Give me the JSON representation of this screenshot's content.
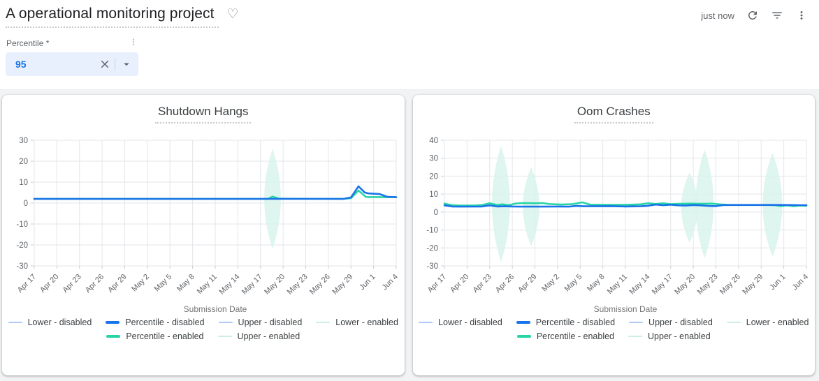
{
  "header": {
    "title": "A operational monitoring project",
    "heart_icon": "heart-outline",
    "updated": "just now",
    "icons": [
      "refresh-icon",
      "filter-icon",
      "kebab-menu-icon"
    ]
  },
  "filter": {
    "label": "Percentile *",
    "value": "95",
    "icons": [
      "kebab-menu-icon",
      "clear-icon",
      "dropdown-caret-icon"
    ]
  },
  "colors": {
    "accent_blue": "#1a73e8",
    "light_blue": "#aecbfa",
    "accent_green": "#26d4a5",
    "light_green": "#cdeee3",
    "band_fill": "#d9f3ec",
    "grid": "#e3e6e9",
    "axis_text": "#5f6368"
  },
  "legend": {
    "rows": [
      [
        {
          "label": "Lower  - disabled",
          "color": "#aecbfa",
          "thick": false
        },
        {
          "label": "Percentile  - disabled",
          "color": "#1a73e8",
          "thick": true
        },
        {
          "label": "Upper  - disabled",
          "color": "#aecbfa",
          "thick": false
        },
        {
          "label": "Lower  - enabled",
          "color": "#cdeee3",
          "thick": false
        }
      ],
      [
        {
          "label": "Percentile  - enabled",
          "color": "#26d4a5",
          "thick": true
        },
        {
          "label": "Upper  - enabled",
          "color": "#cdeee3",
          "thick": false
        }
      ]
    ]
  },
  "chart_data": [
    {
      "type": "line",
      "title": "Shutdown Hangs",
      "xlabel": "Submission Date",
      "ylabel": "",
      "ylim": [
        -30,
        30
      ],
      "ytick_step": 10,
      "categories": [
        "Apr 17",
        "Apr 20",
        "Apr 23",
        "Apr 26",
        "Apr 29",
        "May 2",
        "May 5",
        "May 8",
        "May 11",
        "May 14",
        "May 17",
        "May 20",
        "May 23",
        "May 26",
        "May 29",
        "Jun 1",
        "Jun 4"
      ],
      "x_days_per_tick": 3,
      "x_max": 48,
      "grid": true,
      "legend_position": "bottom",
      "band_color": "#d9f3ec",
      "violins": [
        {
          "x": 31.6,
          "upper": 26,
          "lower": -22,
          "hw": 1.1
        }
      ],
      "series": [
        {
          "name": "Lower - disabled",
          "color": "#aecbfa",
          "thick": false,
          "same_as": "Percentile - disabled"
        },
        {
          "name": "Upper - disabled",
          "color": "#aecbfa",
          "thick": false,
          "same_as": "Percentile - disabled"
        },
        {
          "name": "Lower - enabled",
          "color": "#cdeee3",
          "thick": false,
          "same_as": "Percentile - enabled"
        },
        {
          "name": "Upper - enabled",
          "color": "#cdeee3",
          "thick": false,
          "same_as": "Percentile - enabled"
        },
        {
          "name": "Percentile - enabled",
          "color": "#26d4a5",
          "thick": true,
          "points": [
            [
              0,
              2
            ],
            [
              31,
              2
            ],
            [
              31.6,
              3.1
            ],
            [
              32.5,
              2.1
            ],
            [
              41,
              2
            ],
            [
              42,
              2.3
            ],
            [
              43,
              6
            ],
            [
              44,
              2.9
            ],
            [
              46.5,
              2.8
            ],
            [
              48,
              2.8
            ]
          ]
        },
        {
          "name": "Percentile - disabled",
          "color": "#1a73e8",
          "thick": true,
          "points": [
            [
              0,
              2
            ],
            [
              41,
              2
            ],
            [
              42,
              2.7
            ],
            [
              43,
              8
            ],
            [
              43.8,
              5.1
            ],
            [
              44.3,
              4.6
            ],
            [
              45.8,
              4.3
            ],
            [
              46.8,
              3
            ],
            [
              48,
              2.8
            ]
          ]
        }
      ]
    },
    {
      "type": "line",
      "title": "Oom Crashes",
      "xlabel": "Submission Date",
      "ylabel": "",
      "ylim": [
        -30,
        40
      ],
      "ytick_step": 10,
      "categories": [
        "Apr 17",
        "Apr 20",
        "Apr 23",
        "Apr 26",
        "Apr 29",
        "May 2",
        "May 5",
        "May 8",
        "May 11",
        "May 14",
        "May 17",
        "May 20",
        "May 23",
        "May 26",
        "May 29",
        "Jun 1",
        "Jun 4"
      ],
      "x_days_per_tick": 3,
      "x_max": 48,
      "grid": true,
      "legend_position": "bottom",
      "band_color": "#d9f3ec",
      "violins": [
        {
          "x": 7.5,
          "upper": 37,
          "lower": -28,
          "hw": 1.2
        },
        {
          "x": 11.5,
          "upper": 25,
          "lower": -19,
          "hw": 1.1
        },
        {
          "x": 32.5,
          "upper": 22,
          "lower": -17,
          "hw": 1.1
        },
        {
          "x": 34.5,
          "upper": 35,
          "lower": -26,
          "hw": 1.2
        },
        {
          "x": 43.5,
          "upper": 33,
          "lower": -25,
          "hw": 1.3
        }
      ],
      "series": [
        {
          "name": "Lower - disabled",
          "color": "#aecbfa",
          "thick": false,
          "same_as": "Percentile - disabled"
        },
        {
          "name": "Upper - disabled",
          "color": "#aecbfa",
          "thick": false,
          "same_as": "Percentile - disabled"
        },
        {
          "name": "Lower - enabled",
          "color": "#cdeee3",
          "thick": false,
          "same_as": "Percentile - enabled"
        },
        {
          "name": "Upper - enabled",
          "color": "#cdeee3",
          "thick": false,
          "same_as": "Percentile - enabled"
        },
        {
          "name": "Percentile - enabled",
          "color": "#26d4a5",
          "thick": true,
          "points": [
            [
              0,
              4.7
            ],
            [
              1,
              3.8
            ],
            [
              2,
              3.6
            ],
            [
              4,
              3.6
            ],
            [
              5,
              3.9
            ],
            [
              6,
              4.9
            ],
            [
              7,
              3.9
            ],
            [
              7.7,
              4.3
            ],
            [
              8.5,
              3.8
            ],
            [
              9.5,
              4.8
            ],
            [
              10.5,
              5
            ],
            [
              12,
              4.9
            ],
            [
              13,
              5
            ],
            [
              14,
              4.4
            ],
            [
              15.5,
              4.2
            ],
            [
              17,
              4.4
            ],
            [
              18.3,
              5.4
            ],
            [
              19.3,
              4.1
            ],
            [
              21,
              4
            ],
            [
              24,
              4
            ],
            [
              26,
              4.3
            ],
            [
              27,
              4.9
            ],
            [
              28,
              4.5
            ],
            [
              29,
              4.9
            ],
            [
              30,
              4.4
            ],
            [
              31,
              4.6
            ],
            [
              32.5,
              4.7
            ],
            [
              34,
              4.6
            ],
            [
              35.5,
              4.7
            ],
            [
              36.5,
              4.3
            ],
            [
              37.5,
              4
            ],
            [
              39,
              3.9
            ],
            [
              43,
              3.9
            ],
            [
              43.8,
              3.8
            ],
            [
              44.6,
              3.3
            ],
            [
              45.4,
              3.7
            ],
            [
              46.3,
              3.2
            ],
            [
              47.2,
              3.6
            ],
            [
              48,
              3.5
            ]
          ]
        },
        {
          "name": "Percentile - disabled",
          "color": "#1a73e8",
          "thick": true,
          "points": [
            [
              0,
              3.7
            ],
            [
              1,
              3.1
            ],
            [
              2,
              3
            ],
            [
              5,
              3.1
            ],
            [
              6,
              3.7
            ],
            [
              7,
              3.1
            ],
            [
              8,
              3.2
            ],
            [
              9,
              3.1
            ],
            [
              10,
              3
            ],
            [
              13,
              3
            ],
            [
              15,
              3.1
            ],
            [
              16.5,
              3
            ],
            [
              17.5,
              3.4
            ],
            [
              18.5,
              3.2
            ],
            [
              20,
              3.2
            ],
            [
              22,
              3.3
            ],
            [
              24,
              3.1
            ],
            [
              26,
              3.2
            ],
            [
              27,
              3.5
            ],
            [
              28,
              4.2
            ],
            [
              29,
              3.8
            ],
            [
              30,
              4.1
            ],
            [
              31,
              3.7
            ],
            [
              32,
              3.6
            ],
            [
              33,
              3.9
            ],
            [
              34,
              3.7
            ],
            [
              35,
              3.4
            ],
            [
              36,
              3.3
            ],
            [
              37,
              3.9
            ],
            [
              40,
              3.95
            ],
            [
              44,
              3.95
            ],
            [
              46,
              3.9
            ],
            [
              47,
              3.85
            ],
            [
              48,
              3.85
            ]
          ]
        }
      ]
    }
  ]
}
